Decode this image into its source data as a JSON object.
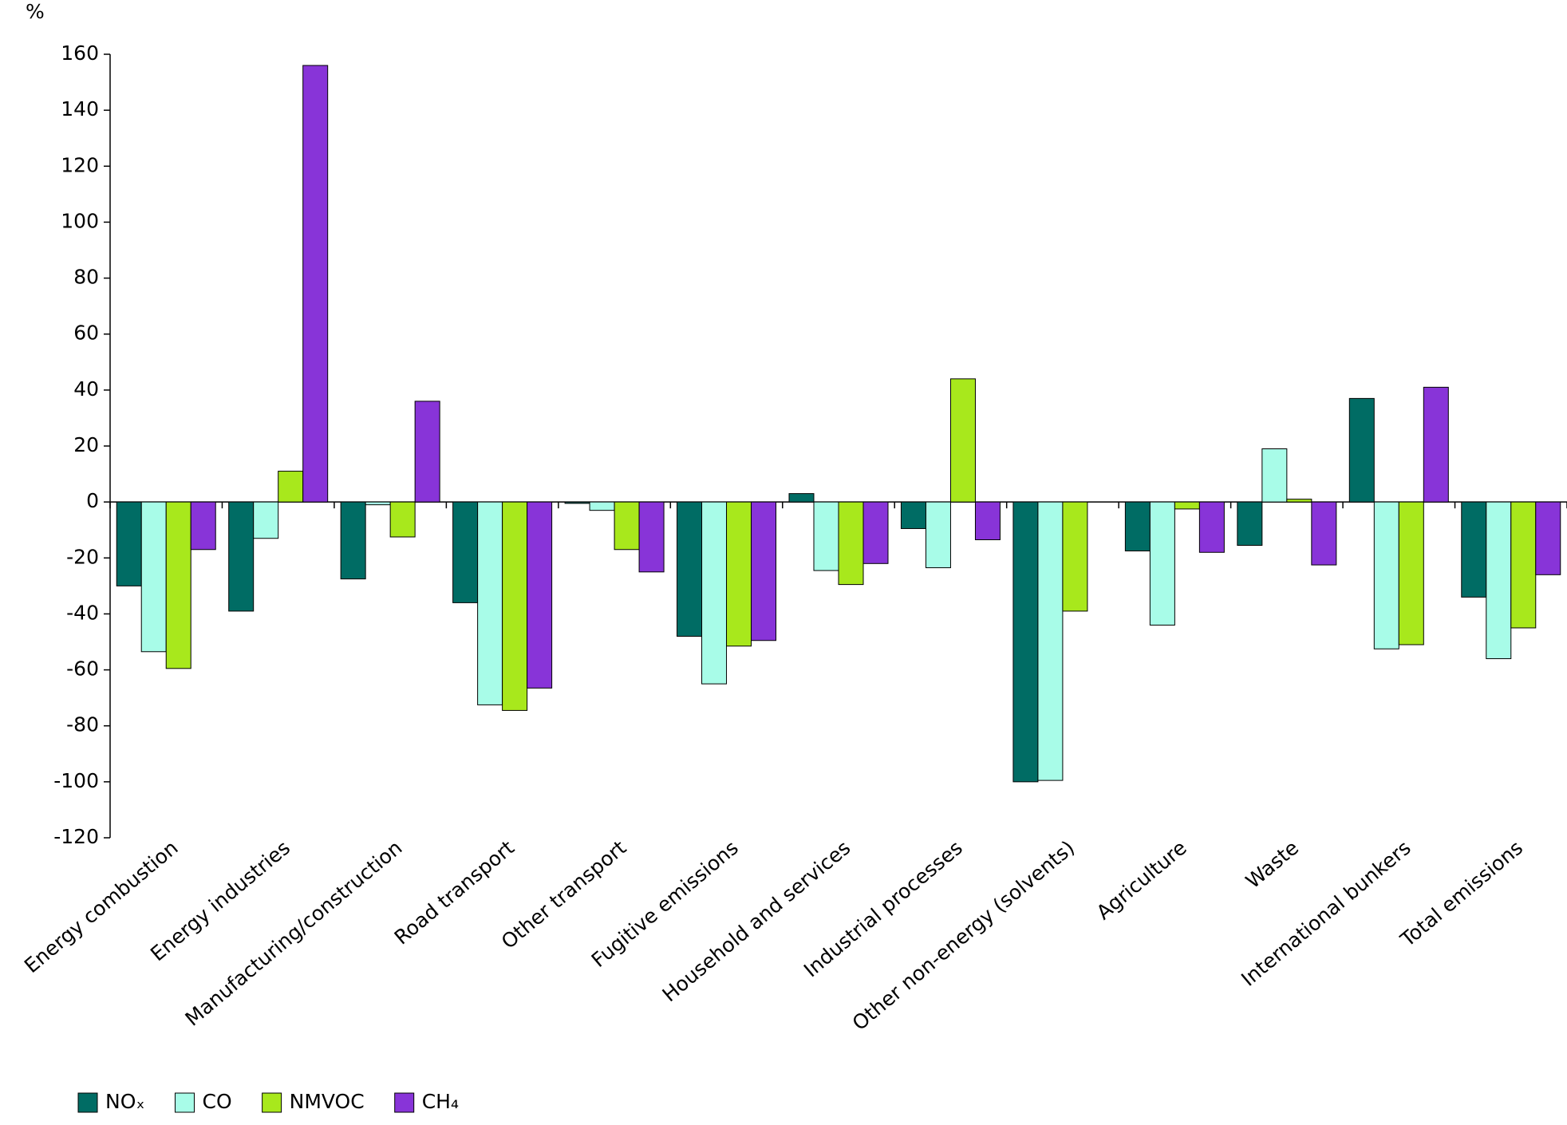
{
  "chart_data": {
    "type": "bar",
    "unit_label": "%",
    "categories": [
      "Energy combustion",
      "Energy industries",
      "Manufacturing/construction",
      "Road transport",
      "Other transport",
      "Fugitive emissions",
      "Household and services",
      "Industrial processes",
      "Other non-energy (solvents)",
      "Agriculture",
      "Waste",
      "International bunkers",
      "Total emissions"
    ],
    "series": [
      {
        "name": "NOₓ",
        "color": "#006c64",
        "values": [
          -30,
          -39,
          -27.5,
          -36,
          -0.5,
          -48,
          3,
          -9.5,
          -100,
          -17.5,
          -15.5,
          37,
          -34
        ]
      },
      {
        "name": "CO",
        "color": "#a8fce8",
        "values": [
          -53.5,
          -13,
          -1,
          -72.5,
          -3,
          -65,
          -24.5,
          -23.5,
          -99.5,
          -44,
          19,
          -52.5,
          -56
        ]
      },
      {
        "name": "NMVOC",
        "color": "#a8e81c",
        "values": [
          -59.5,
          11,
          -12.5,
          -74.5,
          -17,
          -51.5,
          -29.5,
          44,
          -39,
          -2.5,
          1,
          -51,
          -45
        ]
      },
      {
        "name": "CH₄",
        "color": "#8834d8",
        "values": [
          -17,
          156,
          36,
          -66.5,
          -25,
          -49.5,
          -22,
          -13.5,
          null,
          -18,
          -22.5,
          41,
          -26
        ]
      }
    ],
    "ylim": [
      -120,
      160
    ],
    "yticks": [
      -120,
      -100,
      -80,
      -60,
      -40,
      -20,
      0,
      20,
      40,
      60,
      80,
      100,
      120,
      140,
      160
    ],
    "grid": false,
    "legend": "bottom-left"
  }
}
